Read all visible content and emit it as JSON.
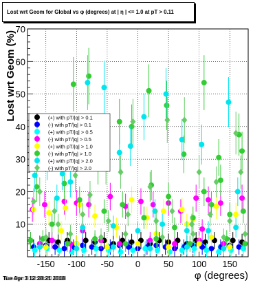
{
  "chart_data": {
    "type": "scatter",
    "title": "Lost wrt Geom for Global vs φ (degrees) at | η | <= 1.0 at pT > 0.11",
    "xlabel": "φ (degrees)",
    "ylabel": "Lost wrt Geom (%)",
    "xlim": [
      -180,
      180
    ],
    "ylim": [
      0,
      70
    ],
    "x_ticks": [
      -150,
      -100,
      -50,
      0,
      50,
      100,
      150
    ],
    "y_ticks": [
      10,
      20,
      30,
      40,
      50,
      60,
      70
    ],
    "grid": true,
    "legend_position": "left-middle",
    "series": [
      {
        "name": "(+) with pT/|q| > 0.1",
        "color": "#000000",
        "marker": "circle",
        "points": [
          [
            -175,
            5
          ],
          [
            -160,
            4
          ],
          [
            -145,
            5
          ],
          [
            -130,
            4.5
          ],
          [
            -115,
            5
          ],
          [
            -100,
            4
          ],
          [
            -85,
            5
          ],
          [
            -70,
            4.5
          ],
          [
            -55,
            5
          ],
          [
            -40,
            4
          ],
          [
            -25,
            5
          ],
          [
            -10,
            4.5
          ],
          [
            5,
            5
          ],
          [
            20,
            4
          ],
          [
            35,
            5
          ],
          [
            50,
            4.5
          ],
          [
            65,
            5
          ],
          [
            80,
            4
          ],
          [
            95,
            5
          ],
          [
            110,
            4.5
          ],
          [
            125,
            5
          ],
          [
            140,
            4
          ],
          [
            155,
            5
          ],
          [
            170,
            4.5
          ]
        ]
      },
      {
        "name": "(-) with pT/|q| > 0.1",
        "color": "#0000ff",
        "marker": "circle",
        "points": [
          [
            -170,
            3
          ],
          [
            -150,
            3.5
          ],
          [
            -135,
            3
          ],
          [
            -120,
            2.5
          ],
          [
            -105,
            3
          ],
          [
            -90,
            3.5
          ],
          [
            -75,
            3
          ],
          [
            -60,
            2.5
          ],
          [
            -45,
            3
          ],
          [
            -30,
            3.5
          ],
          [
            -15,
            3
          ],
          [
            0,
            2.5
          ],
          [
            15,
            3
          ],
          [
            30,
            3.5
          ],
          [
            45,
            3
          ],
          [
            60,
            2.5
          ],
          [
            75,
            3
          ],
          [
            90,
            3.5
          ],
          [
            105,
            3
          ],
          [
            120,
            2.5
          ],
          [
            135,
            3
          ],
          [
            150,
            3.5
          ],
          [
            165,
            3
          ]
        ]
      },
      {
        "name": "(+) with pT/|q| > 0.5",
        "color": "#00ffff",
        "marker": "circle",
        "points": [
          [
            -168,
            2
          ],
          [
            -148,
            2.5
          ],
          [
            -128,
            2
          ],
          [
            -108,
            1.5
          ],
          [
            -88,
            2
          ],
          [
            -68,
            2.5
          ],
          [
            -48,
            2
          ],
          [
            -28,
            1.5
          ],
          [
            -8,
            2
          ],
          [
            12,
            2.5
          ],
          [
            32,
            2
          ],
          [
            52,
            1.5
          ],
          [
            72,
            2
          ],
          [
            92,
            2.5
          ],
          [
            112,
            2
          ],
          [
            132,
            1.5
          ],
          [
            152,
            2
          ],
          [
            172,
            2.5
          ]
        ]
      },
      {
        "name": "(-) with pT/|q| > 0.5",
        "color": "#ff00ff",
        "marker": "circle",
        "points": [
          [
            -172,
            14.5
          ],
          [
            -152,
            16
          ],
          [
            -120,
            17
          ],
          [
            -100,
            16.5
          ],
          [
            -80,
            16
          ],
          [
            -45,
            18.5
          ],
          [
            -20,
            15.5
          ],
          [
            5,
            17
          ],
          [
            25,
            16
          ],
          [
            50,
            16.5
          ],
          [
            70,
            14
          ],
          [
            95,
            18
          ],
          [
            115,
            17.5
          ],
          [
            135,
            16.5
          ],
          [
            170,
            18
          ],
          [
            -160,
            4
          ],
          [
            -140,
            5
          ],
          [
            -110,
            4
          ],
          [
            -60,
            5
          ],
          [
            -30,
            4
          ],
          [
            20,
            5
          ],
          [
            60,
            4
          ],
          [
            100,
            5
          ],
          [
            140,
            4
          ],
          [
            105,
            8.5
          ],
          [
            -90,
            8
          ]
        ]
      },
      {
        "name": "(+) with pT/|q| > 1.0",
        "color": "#ffff00",
        "marker": "circle",
        "points": [
          [
            -170,
            14.5
          ],
          [
            -145,
            13.5
          ],
          [
            -118,
            15
          ],
          [
            -95,
            16
          ],
          [
            -70,
            12.5
          ],
          [
            -10,
            17.5
          ],
          [
            15,
            12
          ],
          [
            42,
            14
          ],
          [
            72,
            14.5
          ],
          [
            90,
            11.5
          ],
          [
            128,
            15.5
          ],
          [
            160,
            13
          ],
          [
            -150,
            3
          ],
          [
            -100,
            4
          ],
          [
            -50,
            3
          ],
          [
            0,
            4
          ],
          [
            50,
            3
          ],
          [
            100,
            4
          ],
          [
            150,
            3
          ],
          [
            -125,
            8
          ],
          [
            -35,
            9
          ],
          [
            30,
            7
          ],
          [
            80,
            10
          ],
          [
            120,
            6
          ]
        ]
      },
      {
        "name": "(-) with pT/|q| > 1.0",
        "color": "#33cc33",
        "marker": "circle",
        "points": [
          [
            -165,
            21.5
          ],
          [
            -140,
            10
          ],
          [
            -105,
            53
          ],
          [
            -80,
            55.5
          ],
          [
            -65,
            27.5
          ],
          [
            -30,
            41.5
          ],
          [
            -10,
            40
          ],
          [
            18,
            51
          ],
          [
            22,
            22
          ],
          [
            47,
            46.5
          ],
          [
            50,
            18.5
          ],
          [
            75,
            31.5
          ],
          [
            108,
            53.5
          ],
          [
            108,
            20
          ],
          [
            132,
            30.5
          ],
          [
            135,
            23.5
          ],
          [
            165,
            37.5
          ],
          [
            170,
            32.5
          ],
          [
            -120,
            22.5
          ],
          [
            -95,
            17.5
          ],
          [
            -55,
            14
          ],
          [
            -25,
            16
          ],
          [
            10,
            12
          ],
          [
            60,
            9
          ],
          [
            90,
            12
          ],
          [
            120,
            16
          ],
          [
            150,
            13
          ],
          [
            172,
            14
          ],
          [
            -155,
            5.5
          ],
          [
            -115,
            4
          ],
          [
            -70,
            5.5
          ],
          [
            -20,
            4
          ],
          [
            30,
            5.5
          ],
          [
            85,
            4
          ],
          [
            145,
            5.5
          ],
          [
            -175,
            5
          ],
          [
            175,
            4
          ]
        ]
      },
      {
        "name": "(+) with pT/|q| > 2.0",
        "color": "#00e5ee",
        "marker": "circle",
        "points": [
          [
            -168,
            25
          ],
          [
            -148,
            29
          ],
          [
            -123,
            25.5
          ],
          [
            -110,
            23
          ],
          [
            -82,
            53.5
          ],
          [
            -55,
            52
          ],
          [
            -30,
            32
          ],
          [
            -12,
            34
          ],
          [
            10,
            43
          ],
          [
            28,
            14
          ],
          [
            46,
            50
          ],
          [
            72,
            36
          ],
          [
            104,
            34.5
          ],
          [
            148,
            47.5
          ],
          [
            163,
            20
          ],
          [
            -132,
            18
          ],
          [
            -90,
            9
          ],
          [
            -40,
            9.5
          ],
          [
            0,
            8
          ],
          [
            40,
            10
          ],
          [
            80,
            8
          ],
          [
            115,
            8
          ],
          [
            160,
            9
          ],
          [
            -160,
            3
          ],
          [
            -100,
            2.5
          ],
          [
            -40,
            3
          ],
          [
            20,
            2.5
          ],
          [
            80,
            3
          ],
          [
            140,
            2.5
          ]
        ]
      },
      {
        "name": "(-) with pT/|q| > 2.0",
        "color": "#66cc66",
        "marker": "diamond",
        "points": [
          [
            -160,
            20
          ],
          [
            -136,
            14
          ],
          [
            -102,
            25
          ],
          [
            -78,
            19
          ],
          [
            -52,
            27.5
          ],
          [
            -28,
            26
          ],
          [
            -8,
            41.5
          ],
          [
            20,
            21.5
          ],
          [
            48,
            42
          ],
          [
            76,
            42
          ],
          [
            100,
            26
          ],
          [
            128,
            23
          ],
          [
            160,
            38
          ],
          [
            168,
            26
          ],
          [
            -170,
            17
          ],
          [
            -130,
            10
          ],
          [
            -90,
            13
          ],
          [
            -48,
            11
          ],
          [
            -16,
            13
          ],
          [
            30,
            11
          ],
          [
            56,
            14
          ],
          [
            88,
            10
          ],
          [
            118,
            13
          ],
          [
            150,
            11
          ],
          [
            -150,
            6
          ],
          [
            -110,
            7
          ],
          [
            -60,
            6
          ],
          [
            -20,
            7
          ],
          [
            40,
            6
          ],
          [
            90,
            7
          ],
          [
            140,
            6
          ],
          [
            175,
            7
          ]
        ]
      }
    ]
  },
  "footer": {
    "timestamp": "Tue Apr  3 12:28:21 2018",
    "timestamp_overlay": "Tue Apr  3 12:28:20 2018"
  }
}
